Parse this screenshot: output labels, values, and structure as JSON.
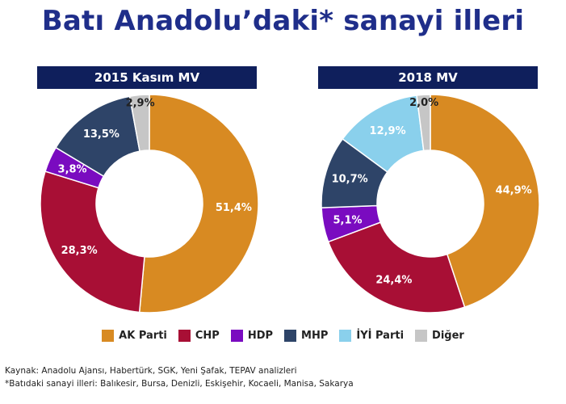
{
  "title": "Batı Anadolu’daki* sanayi illeri",
  "legend": [
    {
      "name": "AK Parti",
      "color": "#d88a22"
    },
    {
      "name": "CHP",
      "color": "#a80f35"
    },
    {
      "name": "HDP",
      "color": "#7a0bc0"
    },
    {
      "name": "MHP",
      "color": "#2e4468"
    },
    {
      "name": "İYİ Parti",
      "color": "#8ad0ec"
    },
    {
      "name": "Diğer",
      "color": "#c6c6c6"
    }
  ],
  "chart_data": [
    {
      "type": "pie",
      "title": "2015 Kasım MV",
      "categories": [
        "AK Parti",
        "CHP",
        "HDP",
        "MHP",
        "Diğer"
      ],
      "values": [
        51.4,
        28.3,
        3.8,
        13.5,
        2.9
      ],
      "labels": [
        "51,4%",
        "28,3%",
        "3,8%",
        "13,5%",
        "2,9%"
      ],
      "colors": [
        "#d88a22",
        "#a80f35",
        "#7a0bc0",
        "#2e4468",
        "#c6c6c6"
      ]
    },
    {
      "type": "pie",
      "title": "2018 MV",
      "categories": [
        "AK Parti",
        "CHP",
        "HDP",
        "MHP",
        "İYİ Parti",
        "Diğer"
      ],
      "values": [
        44.9,
        24.4,
        5.1,
        10.7,
        12.9,
        2.0
      ],
      "labels": [
        "44,9%",
        "24,4%",
        "5,1%",
        "10,7%",
        "12,9%",
        "2,0%"
      ],
      "colors": [
        "#d88a22",
        "#a80f35",
        "#7a0bc0",
        "#2e4468",
        "#8ad0ec",
        "#c6c6c6"
      ]
    }
  ],
  "notes": {
    "source": "Kaynak: Anadolu Ajansı, Habertürk, SGK, Yeni Şafak, TEPAV analizleri",
    "footnote": "*Batıdaki sanayi illeri: Balıkesir, Bursa, Denizli, Eskişehir, Kocaeli, Manisa, Sakarya"
  }
}
